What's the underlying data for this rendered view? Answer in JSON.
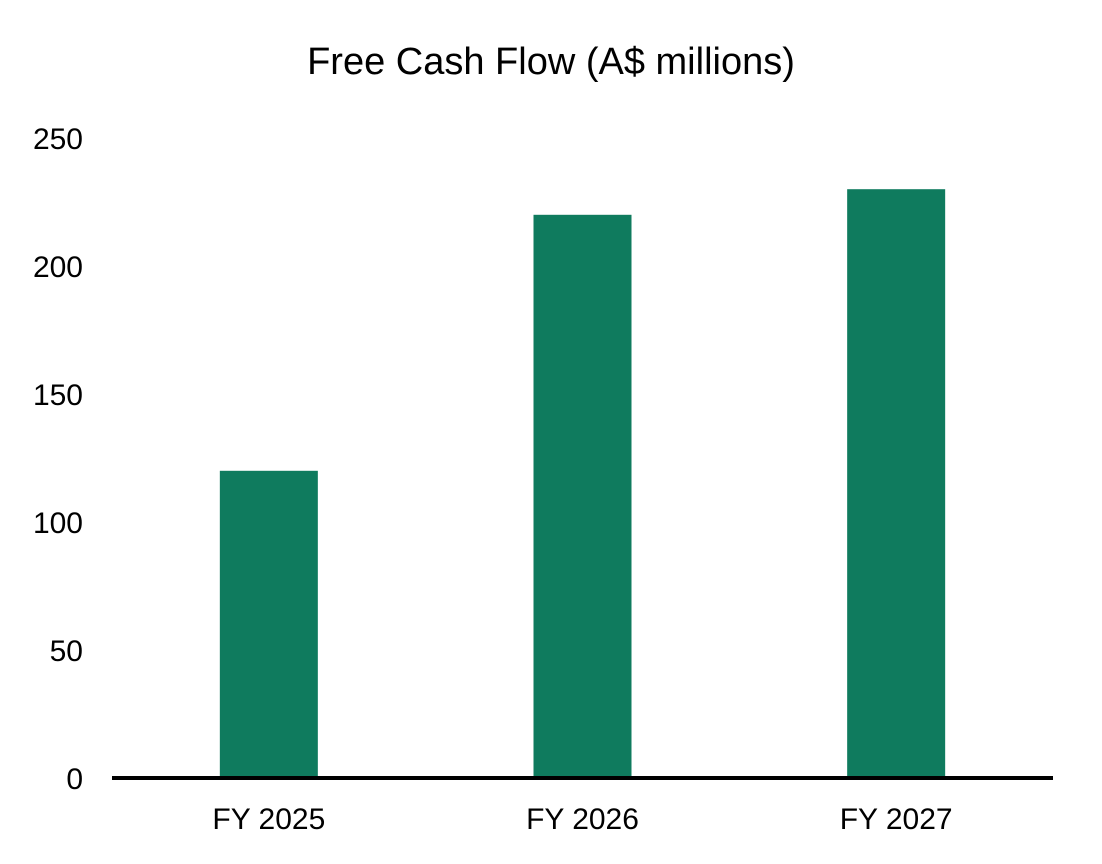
{
  "chart_data": {
    "type": "bar",
    "title": "Free Cash Flow (A$ millions)",
    "categories": [
      "FY 2025",
      "FY 2026",
      "FY 2027"
    ],
    "values": [
      120,
      220,
      230
    ],
    "ylim": [
      0,
      250
    ],
    "yticks": [
      0,
      50,
      100,
      150,
      200,
      250
    ],
    "grid": false,
    "legend": "none",
    "bar_color": "#0f7b5e",
    "axis_color": "#000000"
  }
}
